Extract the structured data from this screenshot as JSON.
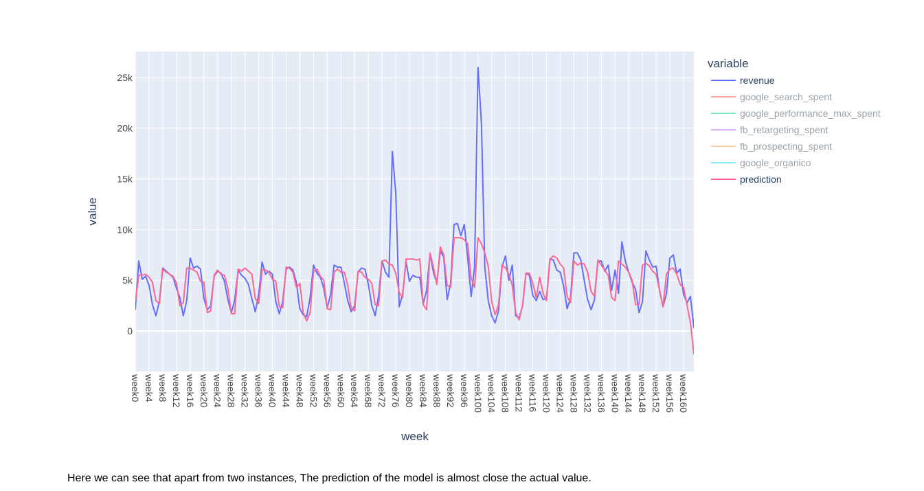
{
  "caption": "Here we can see that apart from two instances, The prediction of the model is almost close the actual value.",
  "colors": {
    "plot_bg": "#e5ecf6",
    "grid": "#ffffff",
    "revenue": "#636efa",
    "google_search_spent": "#ef553b",
    "google_performance_max_spent": "#00cc96",
    "fb_retargeting_spent": "#ab63fa",
    "fb_prospecting_spent": "#ffa15a",
    "google_organico": "#19d3f3",
    "prediction": "#ff6692",
    "inactive_text": "#9aa3ad",
    "active_text": "#2a3f5f"
  },
  "chart_data": {
    "type": "line",
    "xlabel": "week",
    "ylabel": "value",
    "legend_title": "variable",
    "legend_position": "right",
    "grid": true,
    "ylim": [
      -4000,
      27500
    ],
    "y_ticks": [
      0,
      5000,
      10000,
      15000,
      20000,
      25000
    ],
    "y_tick_labels": [
      "0",
      "5k",
      "10k",
      "15k",
      "20k",
      "25k"
    ],
    "x_tick_labels": [
      "week0",
      "week4",
      "week8",
      "week12",
      "week16",
      "week20",
      "week24",
      "week28",
      "week32",
      "week36",
      "week40",
      "week44",
      "week48",
      "week52",
      "week56",
      "week60",
      "week64",
      "week68",
      "week72",
      "week76",
      "week80",
      "week84",
      "week88",
      "week92",
      "week96",
      "week100",
      "week104",
      "week108",
      "week112",
      "week116",
      "week120",
      "week124",
      "week128",
      "week132",
      "week136",
      "week140",
      "week144",
      "week148",
      "week152",
      "week156",
      "week160"
    ],
    "x_tick_step": 4,
    "num_weeks": 164,
    "series": [
      {
        "name": "revenue",
        "visible": true,
        "values": [
          2100,
          6900,
          5100,
          5400,
          4500,
          2600,
          1500,
          2900,
          6200,
          5900,
          5600,
          5300,
          4200,
          3300,
          1500,
          3000,
          7200,
          6200,
          6400,
          6100,
          3200,
          2100,
          2500,
          5400,
          5900,
          5700,
          4900,
          3100,
          1800,
          3000,
          6000,
          5500,
          5200,
          4600,
          3200,
          1900,
          3600,
          6800,
          5600,
          5900,
          5600,
          2900,
          1700,
          2900,
          6100,
          6300,
          6000,
          4800,
          2200,
          1600,
          1400,
          3300,
          6500,
          5700,
          5300,
          4200,
          2300,
          3600,
          6500,
          6300,
          6300,
          4700,
          3000,
          1900,
          2500,
          5800,
          6200,
          6100,
          4600,
          2500,
          1500,
          3500,
          6900,
          5800,
          5300,
          17700,
          13600,
          2400,
          3600,
          6800,
          4900,
          5500,
          5300,
          5300,
          2700,
          4000,
          7600,
          5800,
          4700,
          7900,
          7300,
          3100,
          4700,
          10500,
          10600,
          9400,
          10500,
          7200,
          3400,
          6300,
          26000,
          20500,
          6300,
          3000,
          1500,
          800,
          2000,
          6300,
          7400,
          5000,
          6500,
          1500,
          1300,
          2400,
          5700,
          5500,
          3500,
          3000,
          3900,
          3100,
          3200,
          7100,
          7000,
          6000,
          5800,
          4400,
          2200,
          3200,
          7700,
          7700,
          7000,
          5000,
          3100,
          2100,
          3100,
          6900,
          6900,
          5900,
          6500,
          4000,
          6000,
          3700,
          8800,
          6900,
          5800,
          4800,
          4100,
          1800,
          2900,
          7900,
          7000,
          6300,
          6400,
          4000,
          2400,
          3700,
          7200,
          7500,
          5700,
          6100,
          3600,
          2800,
          3400,
          300
        ]
      },
      {
        "name": "google_search_spent",
        "visible": false,
        "values": []
      },
      {
        "name": "google_performance_max_spent",
        "visible": false,
        "values": []
      },
      {
        "name": "fb_retargeting_spent",
        "visible": false,
        "values": []
      },
      {
        "name": "fb_prospecting_spent",
        "visible": false,
        "values": []
      },
      {
        "name": "google_organico",
        "visible": false,
        "values": []
      },
      {
        "name": "prediction",
        "visible": true,
        "values": [
          2900,
          5500,
          5500,
          5600,
          5300,
          4800,
          3000,
          2700,
          6100,
          5800,
          5600,
          5400,
          4700,
          2500,
          2800,
          6200,
          6200,
          6000,
          5800,
          4900,
          4800,
          1800,
          2000,
          5500,
          6000,
          5600,
          5500,
          4200,
          1700,
          1700,
          6100,
          5900,
          6200,
          5900,
          5600,
          3200,
          2700,
          6000,
          6000,
          5800,
          5100,
          4900,
          2400,
          2300,
          6300,
          6200,
          5800,
          4300,
          4700,
          1800,
          1000,
          1800,
          5900,
          6100,
          5400,
          5000,
          2200,
          2100,
          5800,
          6100,
          5800,
          5800,
          4500,
          2200,
          2000,
          5900,
          5800,
          5300,
          5100,
          4700,
          2600,
          2500,
          6900,
          7000,
          6600,
          6500,
          5700,
          3800,
          3300,
          7100,
          7100,
          7100,
          7000,
          7100,
          2600,
          2100,
          7700,
          6300,
          4600,
          8300,
          7500,
          4500,
          4300,
          9200,
          9200,
          9200,
          9000,
          8600,
          5200,
          4300,
          9200,
          8600,
          7700,
          6400,
          2900,
          1600,
          2600,
          6500,
          6200,
          5600,
          4500,
          1800,
          1100,
          2500,
          5700,
          5700,
          4700,
          3300,
          5300,
          3700,
          3000,
          7100,
          7400,
          7200,
          6600,
          6200,
          3400,
          2800,
          6900,
          6500,
          6700,
          6600,
          5800,
          3900,
          3400,
          7000,
          6500,
          6000,
          5500,
          3300,
          3000,
          6900,
          6600,
          6300,
          5800,
          5000,
          2600,
          2600,
          6500,
          6700,
          6400,
          5900,
          5600,
          4000,
          2400,
          5600,
          6100,
          6200,
          5600,
          4600,
          4300,
          2600,
          800,
          -2300
        ]
      }
    ]
  }
}
